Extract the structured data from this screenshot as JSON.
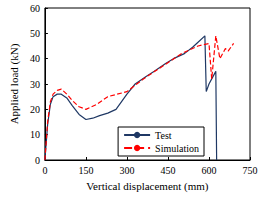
{
  "chart_data": {
    "type": "line",
    "x_label": "Vertical displacement (mm)",
    "y_label": "Applied load (kN)",
    "xlim": [
      0,
      750
    ],
    "xticks": [
      0,
      150,
      300,
      450,
      600,
      750
    ],
    "ylim": [
      0,
      60
    ],
    "yticks": [
      0,
      10,
      20,
      30,
      40,
      50,
      60
    ],
    "grid": false,
    "legend": "lower right",
    "series": [
      {
        "name": "Test",
        "color": "#1f3864",
        "line_style": "solid",
        "x": [
          0,
          10,
          20,
          30,
          45,
          60,
          80,
          100,
          125,
          150,
          175,
          200,
          230,
          260,
          300,
          330,
          370,
          400,
          440,
          470,
          510,
          540,
          560,
          585,
          590,
          600,
          615,
          625,
          628
        ],
        "values": [
          0,
          14,
          22,
          25,
          26,
          26,
          24.5,
          21.5,
          18,
          16,
          16.5,
          17.5,
          18.5,
          20,
          26,
          30,
          33,
          35,
          38,
          40,
          42,
          44.5,
          46.5,
          49,
          27,
          30,
          33,
          35,
          0
        ]
      },
      {
        "name": "Simulation",
        "color": "#ff0000",
        "line_style": "dashed",
        "x": [
          0,
          10,
          20,
          30,
          45,
          60,
          80,
          100,
          125,
          150,
          190,
          230,
          300,
          360,
          430,
          500,
          560,
          600,
          610,
          625,
          640,
          660,
          670,
          690
        ],
        "values": [
          0,
          15,
          23,
          26,
          27.5,
          28,
          26,
          23.5,
          21,
          20,
          22,
          25,
          27,
          32,
          37,
          42,
          45,
          46,
          32,
          49,
          40,
          44,
          43,
          46
        ]
      }
    ]
  }
}
